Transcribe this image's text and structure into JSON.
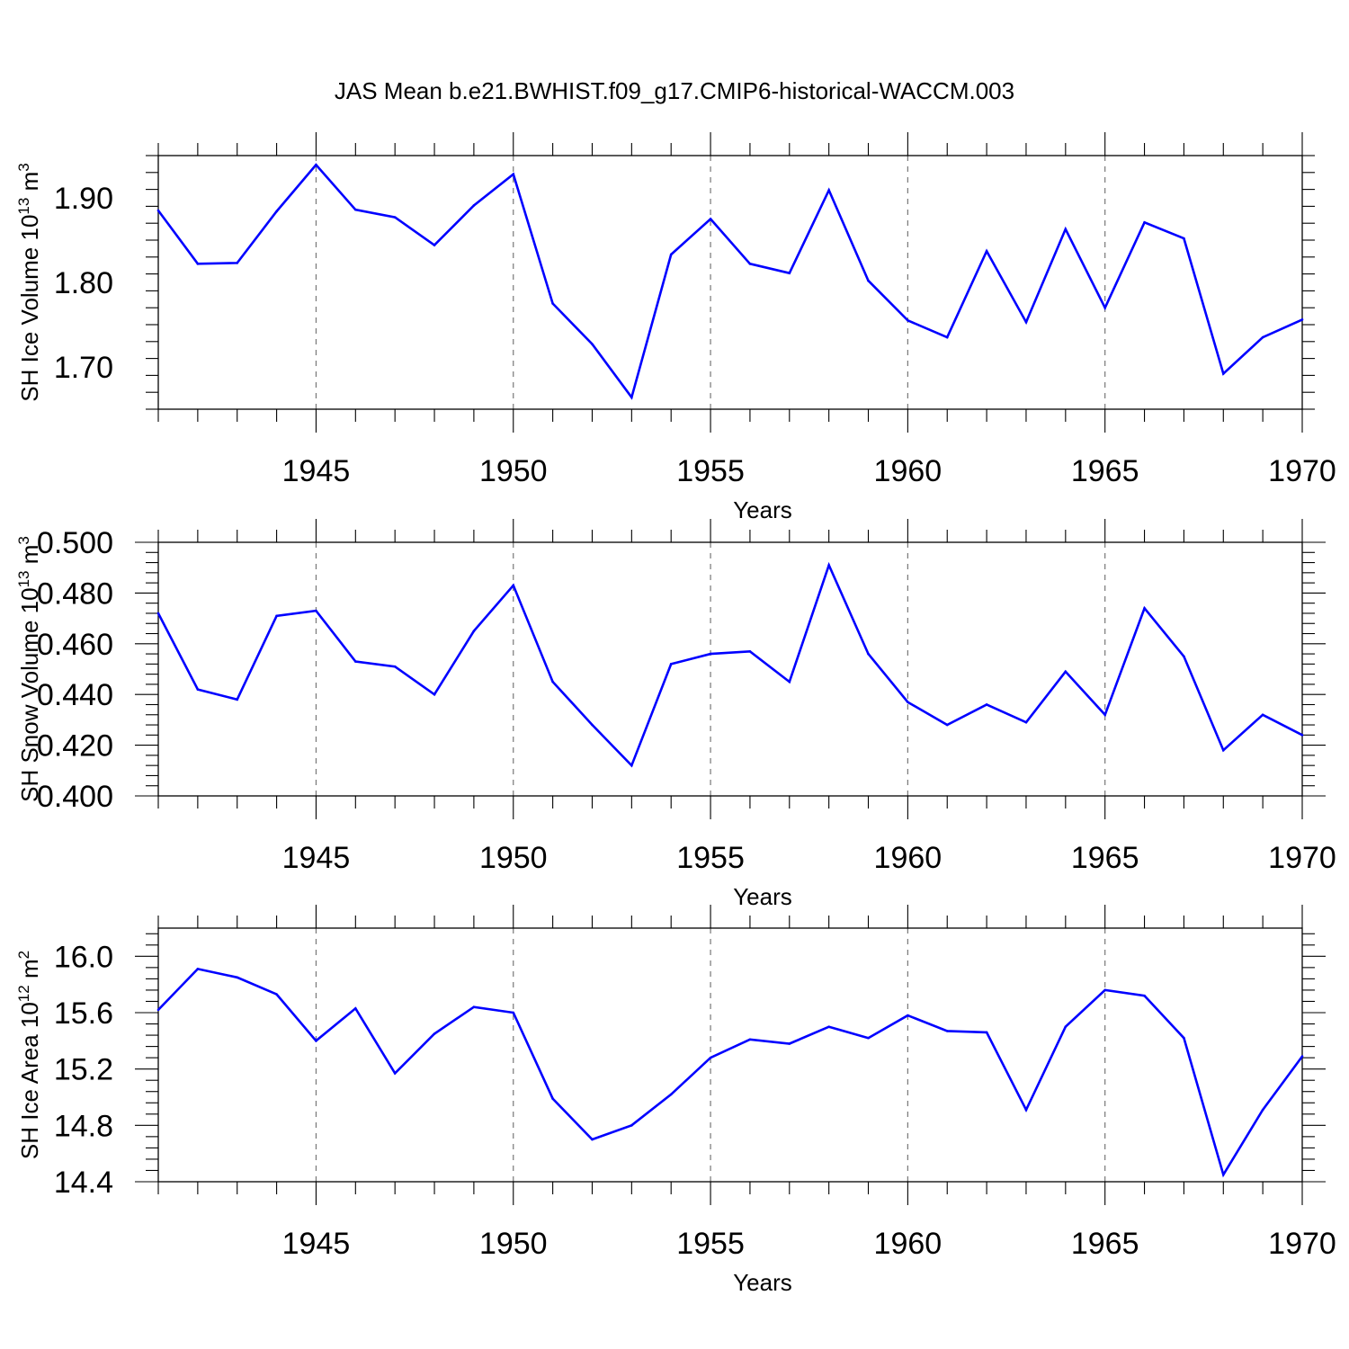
{
  "title": "JAS Mean b.e21.BWHIST.f09_g17.CMIP6-historical-WACCM.003",
  "line_color": "#0000ff",
  "chart_data": [
    {
      "type": "line",
      "ylabel": {
        "text": "SH Ice Volume 10",
        "sup": "13",
        "after": " m",
        "sup2": "3"
      },
      "xlabel": "Years",
      "xlim": [
        1941,
        1970
      ],
      "ylim": [
        1.65,
        1.95
      ],
      "x_ticks": [
        1945,
        1950,
        1955,
        1960,
        1965,
        1970
      ],
      "x_tick_labels": [
        "1945",
        "1950",
        "1955",
        "1960",
        "1965",
        "1970"
      ],
      "y_ticks": [
        1.7,
        1.8,
        1.9
      ],
      "y_tick_labels": [
        "1.70",
        "1.80",
        "1.90"
      ],
      "grid": "dashed vertical at x ticks",
      "x": [
        1941,
        1942,
        1943,
        1944,
        1945,
        1946,
        1947,
        1948,
        1949,
        1950,
        1951,
        1952,
        1953,
        1954,
        1955,
        1956,
        1957,
        1958,
        1959,
        1960,
        1961,
        1962,
        1963,
        1964,
        1965,
        1966,
        1967,
        1968,
        1969,
        1970
      ],
      "values": [
        1.885,
        1.822,
        1.823,
        1.884,
        1.939,
        1.886,
        1.877,
        1.844,
        1.891,
        1.928,
        1.775,
        1.727,
        1.664,
        1.833,
        1.875,
        1.822,
        1.811,
        1.909,
        1.802,
        1.755,
        1.735,
        1.837,
        1.753,
        1.863,
        1.77,
        1.871,
        1.852,
        1.692,
        1.735,
        1.756
      ]
    },
    {
      "type": "line",
      "ylabel": {
        "text": "SH Snow Volume 10",
        "sup": "13",
        "after": " m",
        "sup2": "3"
      },
      "xlabel": "Years",
      "xlim": [
        1941,
        1970
      ],
      "ylim": [
        0.4,
        0.5
      ],
      "x_ticks": [
        1945,
        1950,
        1955,
        1960,
        1965,
        1970
      ],
      "x_tick_labels": [
        "1945",
        "1950",
        "1955",
        "1960",
        "1965",
        "1970"
      ],
      "y_ticks": [
        0.4,
        0.42,
        0.44,
        0.46,
        0.48,
        0.5
      ],
      "y_tick_labels": [
        "0.400",
        "0.420",
        "0.440",
        "0.460",
        "0.480",
        "0.500"
      ],
      "grid": "dashed vertical at x ticks",
      "x": [
        1941,
        1942,
        1943,
        1944,
        1945,
        1946,
        1947,
        1948,
        1949,
        1950,
        1951,
        1952,
        1953,
        1954,
        1955,
        1956,
        1957,
        1958,
        1959,
        1960,
        1961,
        1962,
        1963,
        1964,
        1965,
        1966,
        1967,
        1968,
        1969,
        1970
      ],
      "values": [
        0.472,
        0.442,
        0.438,
        0.471,
        0.473,
        0.453,
        0.451,
        0.44,
        0.465,
        0.483,
        0.445,
        0.428,
        0.412,
        0.452,
        0.456,
        0.457,
        0.445,
        0.491,
        0.456,
        0.437,
        0.428,
        0.436,
        0.429,
        0.449,
        0.432,
        0.474,
        0.455,
        0.418,
        0.432,
        0.424
      ]
    },
    {
      "type": "line",
      "ylabel": {
        "text": "SH Ice Area 10",
        "sup": "12",
        "after": " m",
        "sup2": "2"
      },
      "xlabel": "Years",
      "xlim": [
        1941,
        1970
      ],
      "ylim": [
        14.4,
        16.2
      ],
      "x_ticks": [
        1945,
        1950,
        1955,
        1960,
        1965,
        1970
      ],
      "x_tick_labels": [
        "1945",
        "1950",
        "1955",
        "1960",
        "1965",
        "1970"
      ],
      "y_ticks": [
        14.4,
        14.8,
        15.2,
        15.6,
        16.0
      ],
      "y_tick_labels": [
        "14.4",
        "14.8",
        "15.2",
        "15.6",
        "16.0"
      ],
      "grid": "dashed vertical at x ticks",
      "x": [
        1941,
        1942,
        1943,
        1944,
        1945,
        1946,
        1947,
        1948,
        1949,
        1950,
        1951,
        1952,
        1953,
        1954,
        1955,
        1956,
        1957,
        1958,
        1959,
        1960,
        1961,
        1962,
        1963,
        1964,
        1965,
        1966,
        1967,
        1968,
        1969,
        1970
      ],
      "values": [
        15.62,
        15.91,
        15.85,
        15.73,
        15.4,
        15.63,
        15.17,
        15.45,
        15.64,
        15.6,
        14.99,
        14.7,
        14.8,
        15.02,
        15.28,
        15.41,
        15.38,
        15.5,
        15.42,
        15.58,
        15.47,
        15.46,
        14.91,
        15.5,
        15.76,
        15.72,
        15.42,
        14.45,
        14.91,
        15.29
      ]
    }
  ]
}
